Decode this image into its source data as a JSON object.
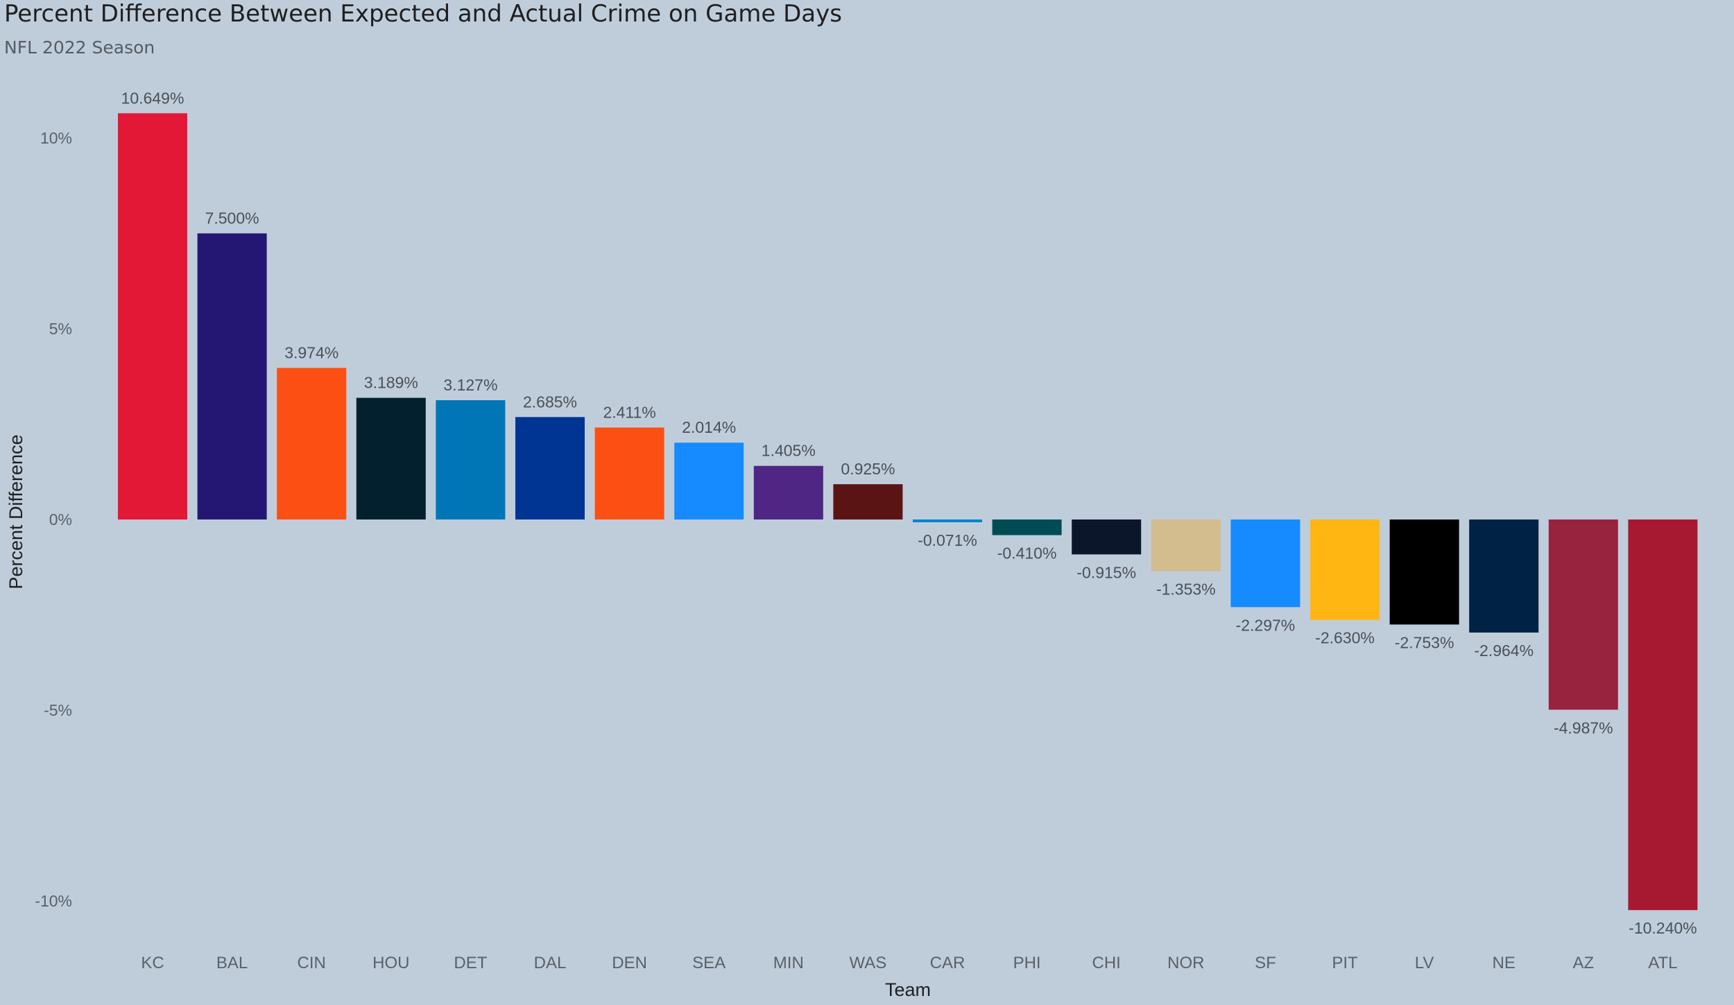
{
  "chart_data": {
    "type": "bar",
    "title": "Percent Difference Between Expected and Actual Crime on Game Days",
    "subtitle": "NFL 2022 Season",
    "xlabel": "Team",
    "ylabel": "Percent Difference",
    "ylim": [
      -11,
      11
    ],
    "yticks": [
      10,
      5,
      0,
      -5,
      -10
    ],
    "ytick_labels": [
      "10%",
      "5%",
      "0%",
      "-5%",
      "-10%"
    ],
    "grid": false,
    "legend": "none",
    "categories": [
      "KC",
      "BAL",
      "CIN",
      "HOU",
      "DET",
      "DAL",
      "DEN",
      "SEA",
      "MIN",
      "WAS",
      "CAR",
      "PHI",
      "CHI",
      "NOR",
      "SF",
      "PIT",
      "LV",
      "NE",
      "AZ",
      "ATL"
    ],
    "values": [
      10.649,
      7.5,
      3.974,
      3.189,
      3.127,
      2.685,
      2.411,
      2.014,
      1.405,
      0.925,
      -0.071,
      -0.41,
      -0.915,
      -1.353,
      -2.297,
      -2.63,
      -2.753,
      -2.964,
      -4.987,
      -10.24
    ],
    "data_labels": [
      "10.649%",
      "7.500%",
      "3.974%",
      "3.189%",
      "3.127%",
      "2.685%",
      "2.411%",
      "2.014%",
      "1.405%",
      "0.925%",
      "-0.071%",
      "-0.410%",
      "-0.915%",
      "-1.353%",
      "-2.297%",
      "-2.630%",
      "-2.753%",
      "-2.964%",
      "-4.987%",
      "-10.240%"
    ],
    "colors": [
      "#e31837",
      "#241773",
      "#fb4f14",
      "#03202f",
      "#0076b6",
      "#003594",
      "#fb4f14",
      "#158bff",
      "#4f2683",
      "#5a1414",
      "#0085ca",
      "#004c54",
      "#0b162a",
      "#d3bc8d",
      "#158bff",
      "#ffb612",
      "#000000",
      "#002244",
      "#97233f",
      "#a71930"
    ]
  }
}
